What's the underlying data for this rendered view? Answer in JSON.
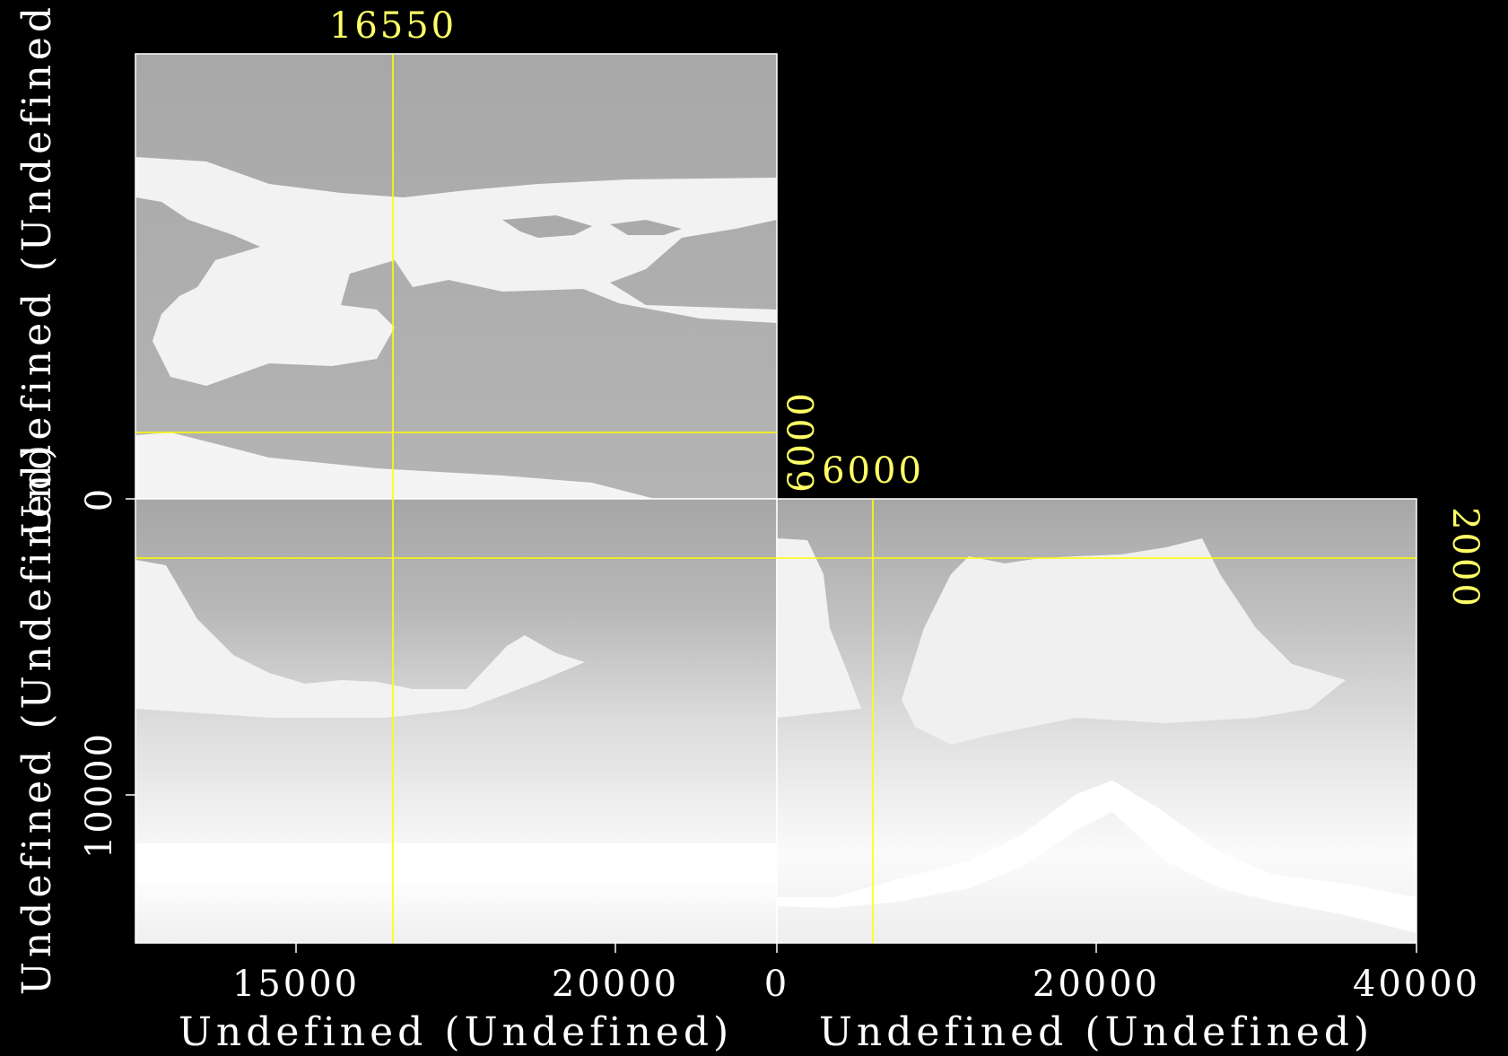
{
  "colors": {
    "background": "#000000",
    "crosshair": "#ffff00",
    "label_axes": "#ffffff",
    "label_crosshair": "#ffff66",
    "panel_edge": "#ffffff"
  },
  "chart_data": {
    "type": "heatmap",
    "description_kind": "3-panel seismic/velocity model cube view (grayscale image panels)",
    "axis_labels": {
      "left_vertical": "Undefined (Undefined)",
      "left_vertical_upper": "Undefined (Undefined)",
      "bottom_left": "Undefined (Undefined)",
      "bottom_right": "Undefined (Undefined)"
    },
    "ticks": {
      "x_left": [
        "15000",
        "20000",
        "0"
      ],
      "x_right": [
        "20000",
        "40000"
      ],
      "y_lower": [
        "0",
        "10000"
      ]
    },
    "crosshair_labels": {
      "top": "16550",
      "top_panel_right_vertical": "6000",
      "right_panel_top": "6000",
      "right_panel_right_vertical": "2000"
    },
    "x_left_range": [
      12500,
      22500
    ],
    "x_right_range": [
      0,
      40000
    ],
    "y_depth_range": [
      0,
      15000
    ],
    "crosshair_values": {
      "inline": 16550,
      "crossline": 6000,
      "depth": 2000
    },
    "grid": false
  }
}
